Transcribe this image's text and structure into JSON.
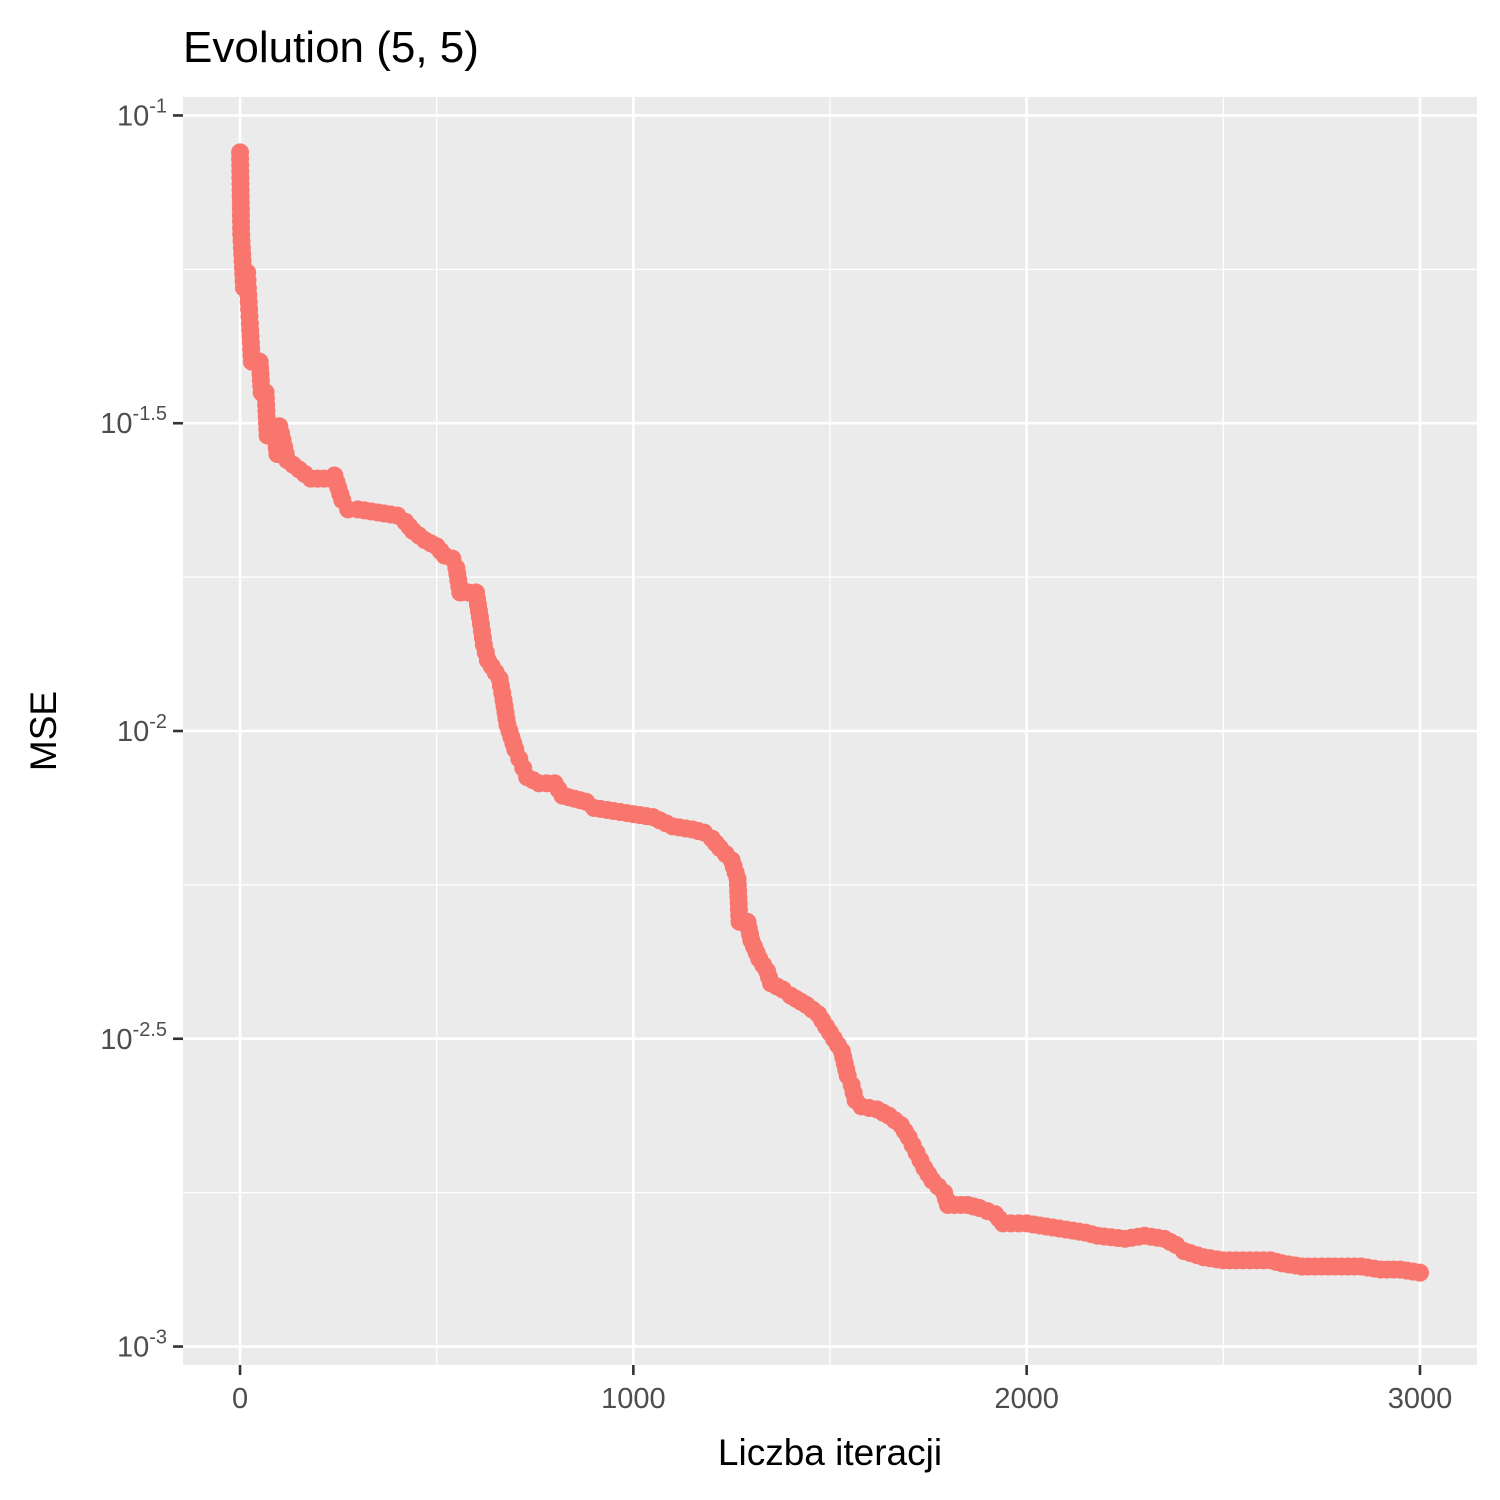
{
  "chart_data": {
    "type": "scatter",
    "title": "Evolution (5, 5)",
    "xlabel": "Liczba iteracji",
    "ylabel": "MSE",
    "xlim": [
      -145,
      3145
    ],
    "ylim_log10": [
      -3.03,
      -0.97
    ],
    "log_y": true,
    "grid": true,
    "point_color": "#F8766D",
    "panel_color": "#EBEBEB",
    "x_ticks": [
      {
        "value": 0,
        "label": "0"
      },
      {
        "value": 1000,
        "label": "1000"
      },
      {
        "value": 2000,
        "label": "2000"
      },
      {
        "value": 3000,
        "label": "3000"
      }
    ],
    "y_ticks": [
      {
        "exp": -1,
        "base": "10",
        "sup": "-1"
      },
      {
        "exp": -1.5,
        "base": "10",
        "sup": "-1.5"
      },
      {
        "exp": -2,
        "base": "10",
        "sup": "-2"
      },
      {
        "exp": -2.5,
        "base": "10",
        "sup": "-2.5"
      },
      {
        "exp": -3,
        "base": "10",
        "sup": "-3"
      }
    ],
    "y_minor_exps": [
      -1.25,
      -1.75,
      -2.25,
      -2.75
    ],
    "x_minor": [
      500,
      1500,
      2500
    ],
    "points_log10": [
      [
        0,
        -1.06
      ],
      [
        3,
        -1.193
      ],
      [
        10,
        -1.28
      ],
      [
        18,
        -1.255
      ],
      [
        20,
        -1.28
      ],
      [
        25,
        -1.338
      ],
      [
        30,
        -1.4
      ],
      [
        50,
        -1.4
      ],
      [
        55,
        -1.45
      ],
      [
        65,
        -1.45
      ],
      [
        70,
        -1.52
      ],
      [
        80,
        -1.505
      ],
      [
        100,
        -1.505
      ],
      [
        90,
        -1.52
      ],
      [
        95,
        -1.55
      ],
      [
        120,
        -1.56
      ],
      [
        150,
        -1.575
      ],
      [
        180,
        -1.59
      ],
      [
        230,
        -1.59
      ],
      [
        240,
        -1.585
      ],
      [
        250,
        -1.605
      ],
      [
        260,
        -1.625
      ],
      [
        275,
        -1.64
      ],
      [
        300,
        -1.64
      ],
      [
        350,
        -1.645
      ],
      [
        400,
        -1.65
      ],
      [
        420,
        -1.66
      ],
      [
        440,
        -1.675
      ],
      [
        470,
        -1.69
      ],
      [
        500,
        -1.7
      ],
      [
        520,
        -1.715
      ],
      [
        540,
        -1.72
      ],
      [
        550,
        -1.735
      ],
      [
        560,
        -1.775
      ],
      [
        600,
        -1.775
      ],
      [
        605,
        -1.795
      ],
      [
        610,
        -1.815
      ],
      [
        620,
        -1.86
      ],
      [
        630,
        -1.885
      ],
      [
        650,
        -1.905
      ],
      [
        660,
        -1.915
      ],
      [
        670,
        -1.95
      ],
      [
        680,
        -1.99
      ],
      [
        690,
        -2.01
      ],
      [
        700,
        -2.03
      ],
      [
        710,
        -2.045
      ],
      [
        720,
        -2.06
      ],
      [
        730,
        -2.075
      ],
      [
        760,
        -2.085
      ],
      [
        800,
        -2.085
      ],
      [
        820,
        -2.105
      ],
      [
        850,
        -2.11
      ],
      [
        880,
        -2.115
      ],
      [
        900,
        -2.125
      ],
      [
        950,
        -2.13
      ],
      [
        1000,
        -2.135
      ],
      [
        1050,
        -2.14
      ],
      [
        1100,
        -2.155
      ],
      [
        1150,
        -2.16
      ],
      [
        1180,
        -2.165
      ],
      [
        1200,
        -2.175
      ],
      [
        1220,
        -2.19
      ],
      [
        1250,
        -2.21
      ],
      [
        1265,
        -2.24
      ],
      [
        1270,
        -2.31
      ],
      [
        1290,
        -2.31
      ],
      [
        1300,
        -2.34
      ],
      [
        1320,
        -2.37
      ],
      [
        1340,
        -2.39
      ],
      [
        1350,
        -2.41
      ],
      [
        1380,
        -2.42
      ],
      [
        1400,
        -2.43
      ],
      [
        1440,
        -2.445
      ],
      [
        1470,
        -2.46
      ],
      [
        1500,
        -2.49
      ],
      [
        1530,
        -2.52
      ],
      [
        1545,
        -2.56
      ],
      [
        1555,
        -2.575
      ],
      [
        1565,
        -2.6
      ],
      [
        1580,
        -2.61
      ],
      [
        1620,
        -2.615
      ],
      [
        1650,
        -2.625
      ],
      [
        1680,
        -2.64
      ],
      [
        1700,
        -2.66
      ],
      [
        1720,
        -2.685
      ],
      [
        1740,
        -2.71
      ],
      [
        1760,
        -2.73
      ],
      [
        1790,
        -2.75
      ],
      [
        1800,
        -2.77
      ],
      [
        1850,
        -2.77
      ],
      [
        1880,
        -2.775
      ],
      [
        1920,
        -2.785
      ],
      [
        1940,
        -2.8
      ],
      [
        2000,
        -2.8
      ],
      [
        2050,
        -2.805
      ],
      [
        2100,
        -2.81
      ],
      [
        2150,
        -2.815
      ],
      [
        2180,
        -2.82
      ],
      [
        2250,
        -2.825
      ],
      [
        2300,
        -2.82
      ],
      [
        2350,
        -2.825
      ],
      [
        2380,
        -2.835
      ],
      [
        2400,
        -2.845
      ],
      [
        2450,
        -2.855
      ],
      [
        2500,
        -2.86
      ],
      [
        2550,
        -2.86
      ],
      [
        2620,
        -2.86
      ],
      [
        2650,
        -2.865
      ],
      [
        2700,
        -2.87
      ],
      [
        2800,
        -2.87
      ],
      [
        2850,
        -2.87
      ],
      [
        2900,
        -2.875
      ],
      [
        2950,
        -2.875
      ],
      [
        3000,
        -2.88
      ]
    ]
  }
}
